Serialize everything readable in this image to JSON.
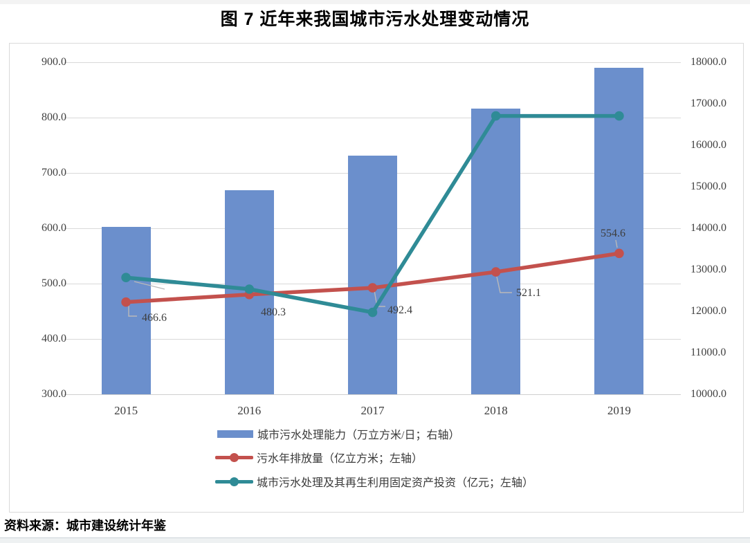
{
  "page": {
    "title": "图 7  近年来我国城市污水处理变动情况",
    "source": "资料来源：城市建设统计年鉴"
  },
  "colors": {
    "bar_blue": "#6b8fcc",
    "line_red": "#c3514d",
    "line_teal": "#2f8b96",
    "gridline": "#d9d9d9",
    "leader": "#b9b9b9",
    "axis_text": "#404040"
  },
  "chart_data": {
    "type": "combo",
    "title": "图 7  近年来我国城市污水处理变动情况",
    "categories": [
      "2015",
      "2016",
      "2017",
      "2018",
      "2019"
    ],
    "series": [
      {
        "name": "城市污水处理能力（万立方米/日；右轴）",
        "type": "bar",
        "axis": "right",
        "color": "#6b8fcc",
        "values": [
          14038,
          14910,
          15743,
          16881,
          17863
        ]
      },
      {
        "name": "污水年排放量（亿立方米；左轴）",
        "type": "line",
        "axis": "left",
        "color": "#c3514d",
        "values": [
          466.6,
          480.3,
          492.4,
          521.1,
          554.6
        ],
        "data_labels": [
          "466.6",
          "480.3",
          "492.4",
          "521.1",
          "554.6"
        ]
      },
      {
        "name": "城市污水处理及其再生利用固定资产投资（亿元；左轴）",
        "type": "line",
        "axis": "left",
        "color": "#2f8b96",
        "values": [
          511,
          490,
          448,
          803,
          803
        ]
      }
    ],
    "left_axis": {
      "min": 300,
      "max": 900,
      "step": 100,
      "tick_labels": [
        "900.0",
        "800.0",
        "700.0",
        "600.0",
        "500.0",
        "400.0",
        "300.0"
      ]
    },
    "right_axis": {
      "min": 10000,
      "max": 18000,
      "step": 1000,
      "tick_labels": [
        "18000.0",
        "17000.0",
        "16000.0",
        "15000.0",
        "14000.0",
        "13000.0",
        "12000.0",
        "11000.0",
        "10000.0"
      ]
    },
    "grid": true,
    "legend_position": "bottom",
    "source": "资料来源：城市建设统计年鉴"
  }
}
